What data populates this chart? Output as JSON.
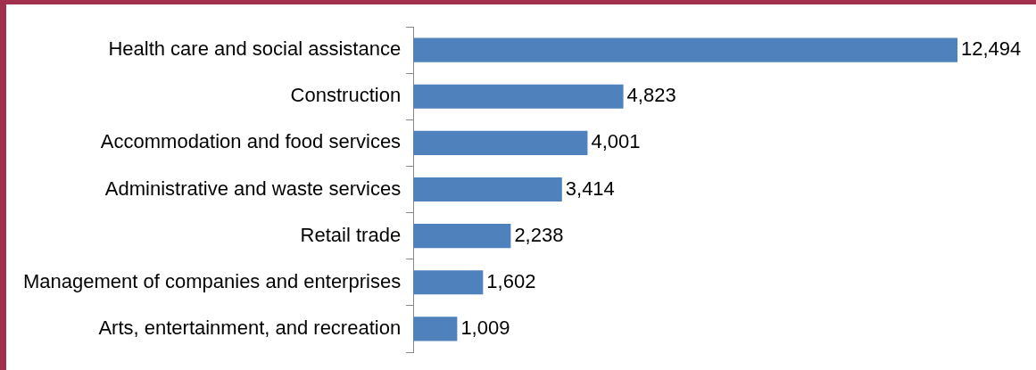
{
  "chart_data": {
    "type": "bar",
    "orientation": "horizontal",
    "categories": [
      "Health care and social assistance",
      "Construction",
      "Accommodation and food services",
      "Administrative and waste services",
      "Retail trade",
      "Management of companies and enterprises",
      "Arts, entertainment, and recreation"
    ],
    "values": [
      12494,
      4823,
      4001,
      3414,
      2238,
      1602,
      1009
    ],
    "value_labels": [
      "12,494",
      "4,823",
      "4,001",
      "3,414",
      "2,238",
      "1,602",
      "1,009"
    ],
    "color": "#4f81bd"
  }
}
